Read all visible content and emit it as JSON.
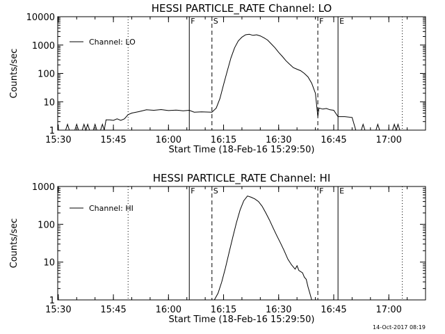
{
  "footer": {
    "timestamp": "14-Oct-2017 08:19"
  },
  "chart_data": [
    {
      "type": "line",
      "title": "HESSI PARTICLE_RATE Channel: LO",
      "xlabel": "Start Time (18-Feb-16 15:29:50)",
      "ylabel": "Counts/sec",
      "yscale": "log",
      "xlim": [
        "15:29:50",
        "17:10:00"
      ],
      "ylim": [
        1,
        10000
      ],
      "x_ticks": [
        "15:30",
        "15:45",
        "16:00",
        "16:15",
        "16:30",
        "16:45",
        "17:00"
      ],
      "y_ticks": [
        "1",
        "10",
        "100",
        "1000",
        "10000"
      ],
      "legend": {
        "position": "top-left",
        "entries": [
          "Channel: LO"
        ]
      },
      "markers": [
        {
          "time": "15:49:00",
          "style": "dotted",
          "label": ""
        },
        {
          "time": "16:05:40",
          "style": "solid",
          "label": "F"
        },
        {
          "time": "16:11:50",
          "style": "dashed",
          "label": "S"
        },
        {
          "time": "16:40:40",
          "style": "dashed",
          "label": "F"
        },
        {
          "time": "16:46:10",
          "style": "solid",
          "label": "E"
        },
        {
          "time": "17:03:40",
          "style": "dotted",
          "label": ""
        }
      ],
      "series": [
        {
          "name": "Channel: LO",
          "points": [
            [
              "15:32:00",
              1
            ],
            [
              "15:32:30",
              1.6
            ],
            [
              "15:33:00",
              1
            ],
            [
              "15:34:30",
              1
            ],
            [
              "15:35:00",
              1.6
            ],
            [
              "15:35:30",
              1
            ],
            [
              "15:36:30",
              1
            ],
            [
              "15:37:00",
              1.6
            ],
            [
              "15:37:30",
              1
            ],
            [
              "15:38:00",
              1.6
            ],
            [
              "15:38:30",
              1
            ],
            [
              "15:39:30",
              1
            ],
            [
              "15:40:00",
              1.6
            ],
            [
              "15:40:30",
              1
            ],
            [
              "15:41:30",
              1
            ],
            [
              "15:42:00",
              1.6
            ],
            [
              "15:42:30",
              1
            ],
            [
              "15:43:00",
              2.3
            ],
            [
              "15:44:00",
              2.3
            ],
            [
              "15:45:00",
              2.2
            ],
            [
              "15:46:00",
              2.5
            ],
            [
              "15:47:00",
              2.2
            ],
            [
              "15:48:00",
              2.5
            ],
            [
              "15:49:00",
              3.5
            ],
            [
              "15:50:00",
              4.0
            ],
            [
              "15:52:00",
              4.5
            ],
            [
              "15:54:00",
              5.2
            ],
            [
              "15:56:00",
              5.0
            ],
            [
              "15:58:00",
              5.3
            ],
            [
              "16:00:00",
              4.9
            ],
            [
              "16:02:00",
              5.1
            ],
            [
              "16:04:00",
              4.8
            ],
            [
              "16:05:40",
              5.0
            ],
            [
              "16:07:00",
              4.3
            ],
            [
              "16:09:00",
              4.4
            ],
            [
              "16:11:50",
              4.3
            ],
            [
              "16:13:00",
              6
            ],
            [
              "16:14:00",
              13
            ],
            [
              "16:15:00",
              40
            ],
            [
              "16:16:00",
              120
            ],
            [
              "16:17:00",
              350
            ],
            [
              "16:18:00",
              800
            ],
            [
              "16:19:00",
              1400
            ],
            [
              "16:20:00",
              1900
            ],
            [
              "16:21:00",
              2300
            ],
            [
              "16:22:00",
              2400
            ],
            [
              "16:23:00",
              2200
            ],
            [
              "16:24:00",
              2300
            ],
            [
              "16:25:00",
              2100
            ],
            [
              "16:26:00",
              1800
            ],
            [
              "16:27:00",
              1500
            ],
            [
              "16:28:00",
              1100
            ],
            [
              "16:29:00",
              800
            ],
            [
              "16:30:00",
              550
            ],
            [
              "16:31:00",
              400
            ],
            [
              "16:32:00",
              280
            ],
            [
              "16:33:00",
              210
            ],
            [
              "16:34:00",
              160
            ],
            [
              "16:35:00",
              140
            ],
            [
              "16:36:00",
              125
            ],
            [
              "16:37:00",
              100
            ],
            [
              "16:38:00",
              75
            ],
            [
              "16:39:00",
              45
            ],
            [
              "16:40:00",
              20
            ],
            [
              "16:40:40",
              3
            ],
            [
              "16:41:00",
              6
            ],
            [
              "16:42:00",
              5.5
            ],
            [
              "16:43:00",
              5.8
            ],
            [
              "16:44:00",
              5.2
            ],
            [
              "16:45:00",
              5.0
            ],
            [
              "16:46:10",
              3.0
            ],
            [
              "16:48:00",
              3.0
            ],
            [
              "16:50:00",
              2.8
            ],
            [
              "16:51:00",
              1
            ],
            [
              "16:52:30",
              1
            ],
            [
              "16:53:00",
              1.6
            ],
            [
              "16:53:30",
              1
            ],
            [
              "16:56:30",
              1
            ],
            [
              "16:57:00",
              1.6
            ],
            [
              "16:57:30",
              1
            ],
            [
              "17:01:00",
              1
            ],
            [
              "17:01:30",
              1.6
            ],
            [
              "17:02:00",
              1
            ],
            [
              "17:02:30",
              1.6
            ],
            [
              "17:03:00",
              1
            ],
            [
              "17:04:00",
              1
            ]
          ]
        }
      ]
    },
    {
      "type": "line",
      "title": "HESSI PARTICLE_RATE Channel: HI",
      "xlabel": "Start Time (18-Feb-16 15:29:50)",
      "ylabel": "Counts/sec",
      "yscale": "log",
      "xlim": [
        "15:29:50",
        "17:10:00"
      ],
      "ylim": [
        1,
        1000
      ],
      "x_ticks": [
        "15:30",
        "15:45",
        "16:00",
        "16:15",
        "16:30",
        "16:45",
        "17:00"
      ],
      "y_ticks": [
        "1",
        "10",
        "100",
        "1000"
      ],
      "legend": {
        "position": "top-left",
        "entries": [
          "Channel: HI"
        ]
      },
      "markers": [
        {
          "time": "15:49:00",
          "style": "dotted",
          "label": ""
        },
        {
          "time": "16:05:40",
          "style": "solid",
          "label": "F"
        },
        {
          "time": "16:11:50",
          "style": "dashed",
          "label": "S"
        },
        {
          "time": "16:40:40",
          "style": "dashed",
          "label": "F"
        },
        {
          "time": "16:46:10",
          "style": "solid",
          "label": "E"
        },
        {
          "time": "17:03:40",
          "style": "dotted",
          "label": ""
        }
      ],
      "series": [
        {
          "name": "Channel: HI",
          "points": [
            [
              "16:12:30",
              1
            ],
            [
              "16:13:30",
              1.5
            ],
            [
              "16:14:30",
              3
            ],
            [
              "16:15:30",
              7
            ],
            [
              "16:16:30",
              18
            ],
            [
              "16:17:30",
              45
            ],
            [
              "16:18:30",
              110
            ],
            [
              "16:19:30",
              240
            ],
            [
              "16:20:30",
              420
            ],
            [
              "16:21:30",
              560
            ],
            [
              "16:22:30",
              520
            ],
            [
              "16:23:30",
              470
            ],
            [
              "16:24:30",
              400
            ],
            [
              "16:25:30",
              300
            ],
            [
              "16:26:30",
              200
            ],
            [
              "16:27:30",
              130
            ],
            [
              "16:28:30",
              80
            ],
            [
              "16:29:30",
              50
            ],
            [
              "16:30:30",
              32
            ],
            [
              "16:31:30",
              20
            ],
            [
              "16:32:30",
              12
            ],
            [
              "16:33:30",
              8.5
            ],
            [
              "16:34:30",
              6.5
            ],
            [
              "16:35:00",
              8
            ],
            [
              "16:35:30",
              6
            ],
            [
              "16:36:30",
              5.2
            ],
            [
              "16:37:00",
              4
            ],
            [
              "16:37:30",
              3.5
            ],
            [
              "16:38:00",
              2.2
            ],
            [
              "16:38:30",
              1.5
            ],
            [
              "16:39:00",
              1
            ]
          ]
        }
      ]
    }
  ]
}
